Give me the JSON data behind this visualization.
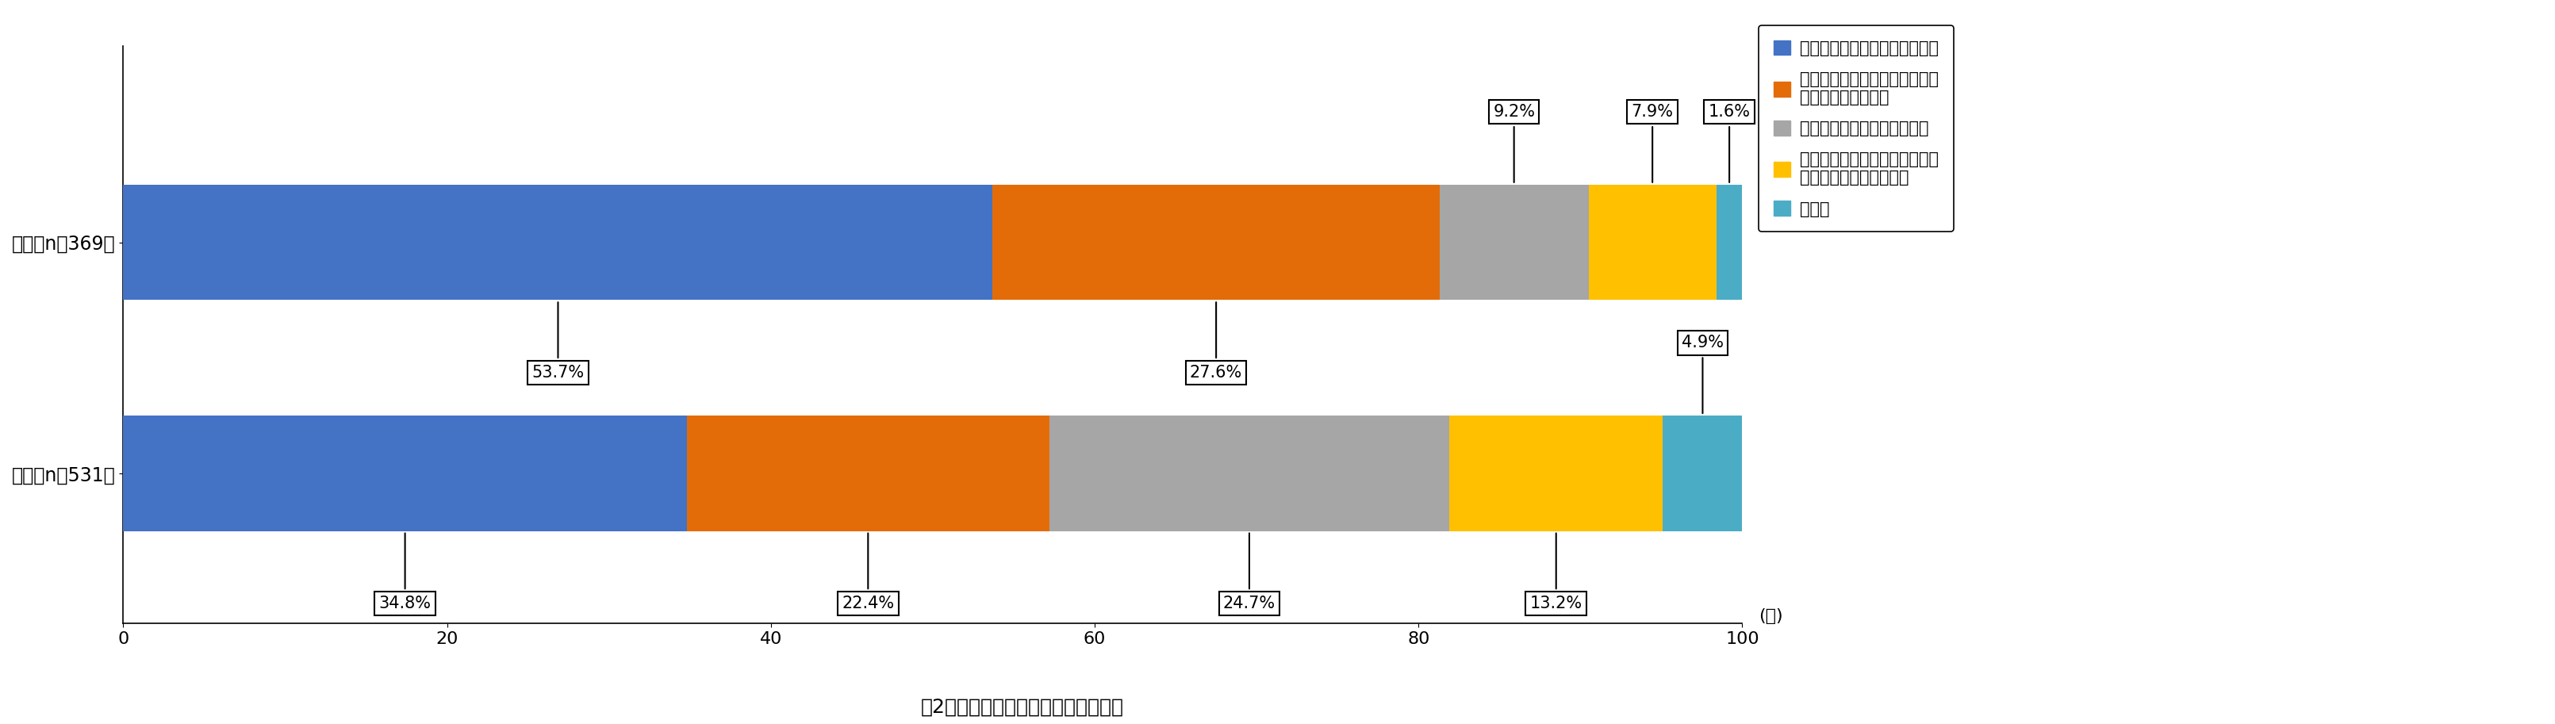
{
  "categories": [
    "米国（n］369）",
    "日本（n］531）"
  ],
  "series": [
    {
      "label": "自社で新規にデータを収集する",
      "color": "#4472C4",
      "values": [
        53.7,
        34.8
      ]
    },
    {
      "label": "足りないデータを所有している\n外部組織と提携する",
      "color": "#E36C09",
      "values": [
        27.6,
        22.4
      ]
    },
    {
      "label": "オープンなデータを利用する",
      "color": "#A6A6A6",
      "values": [
        9.2,
        24.7
      ]
    },
    {
      "label": "データ活用計画を見直すなど，\nユースケースを修正する",
      "color": "#FFC000",
      "values": [
        7.9,
        13.2
      ]
    },
    {
      "label": "その他",
      "color": "#4BACC6",
      "values": [
        1.6,
        4.9
      ]
    }
  ],
  "xlabel": "(％)",
  "title": "図2　不足データが生じた場合の対処",
  "xlim": [
    0,
    100
  ],
  "xticks": [
    0,
    20,
    40,
    60,
    80,
    100
  ],
  "bar_height": 0.5,
  "bg_color": "#FFFFFF",
  "label_fontsize": 17,
  "tick_fontsize": 16,
  "title_fontsize": 18,
  "legend_fontsize": 15,
  "annotation_fontsize": 15,
  "us_above": [
    false,
    false,
    true,
    true,
    true
  ],
  "jp_above": [
    false,
    false,
    false,
    false,
    true
  ],
  "us_labels": [
    "53.7%",
    "27.6%",
    "9.2%",
    "7.9%",
    "1.6%"
  ],
  "jp_labels": [
    "34.8%",
    "22.4%",
    "24.7%",
    "13.2%",
    "4.9%"
  ]
}
